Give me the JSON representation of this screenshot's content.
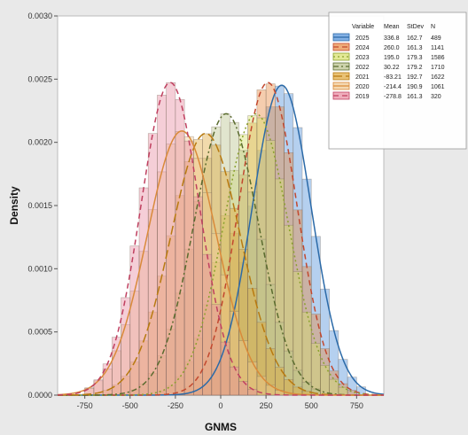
{
  "chart_data": {
    "type": "histogram",
    "title": "",
    "xlabel": "GNMS",
    "ylabel": "Density",
    "xlim": [
      -900,
      900
    ],
    "ylim": [
      0,
      0.003
    ],
    "xticks": [
      -750,
      -500,
      -250,
      0,
      250,
      500,
      750
    ],
    "yticks": [
      0,
      0.0005,
      0.001,
      0.0015,
      0.002,
      0.0025,
      0.003
    ],
    "xtick_labels": [
      "-750",
      "-500",
      "-250",
      "0",
      "250",
      "500",
      "750"
    ],
    "ytick_labels": [
      "0.0000",
      "0.0005",
      "0.0010",
      "0.0015",
      "0.0020",
      "0.0025",
      "0.0030"
    ],
    "grid": false,
    "legend_position": "top-right",
    "legend_headers": [
      "Variable",
      "Mean",
      "StDev",
      "N"
    ],
    "series": [
      {
        "name": "2025",
        "mean": "336.8",
        "stdev": "162.7",
        "n": "489",
        "fill": "#4f8fd8",
        "line": "#2b6aa8",
        "dash": "solid"
      },
      {
        "name": "2024",
        "mean": "260.0",
        "stdev": "161.3",
        "n": "1141",
        "fill": "#e8893e",
        "line": "#c2482e",
        "dash": "dash"
      },
      {
        "name": "2023",
        "mean": "195.0",
        "stdev": "179.3",
        "n": "1586",
        "fill": "#d7e06a",
        "line": "#8aa12c",
        "dash": "dot"
      },
      {
        "name": "2022",
        "mean": "30.22",
        "stdev": "179.2",
        "n": "1710",
        "fill": "#b8c08a",
        "line": "#5a6b2e",
        "dash": "dashdot"
      },
      {
        "name": "2021",
        "mean": "-83.21",
        "stdev": "192.7",
        "n": "1622",
        "fill": "#e0a83a",
        "line": "#b87a10",
        "dash": "longdash"
      },
      {
        "name": "2020",
        "mean": "-214.4",
        "stdev": "190.9",
        "n": "1061",
        "fill": "#f0c890",
        "line": "#d98a3a",
        "dash": "solid"
      },
      {
        "name": "2019",
        "mean": "-278.8",
        "stdev": "161.3",
        "n": "320",
        "fill": "#e88aa0",
        "line": "#c04060",
        "dash": "dash"
      }
    ]
  }
}
